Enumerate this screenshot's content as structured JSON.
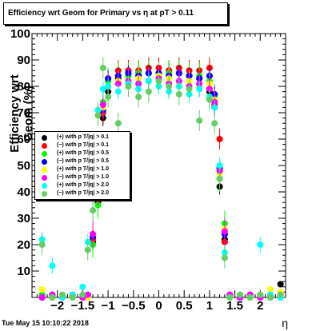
{
  "title": "Efficiency wrt Geom for Primary vs   η at pT > 0.11",
  "timestamp": "Tue May 15 10:10:22 2018",
  "chart_data": {
    "type": "scatter",
    "xlabel": "η",
    "ylabel": "Efficiency wrt Geom (%)",
    "xlim": [
      -2.5,
      2.5
    ],
    "ylim": [
      0,
      100
    ],
    "xticks": [
      -2,
      -1.5,
      -1,
      -0.5,
      0,
      0.5,
      1,
      1.5,
      2
    ],
    "xtick_labels": [
      "−2",
      "−1.5",
      "−1",
      "−0.5",
      "0",
      "0.5",
      "1",
      "1.5",
      "2"
    ],
    "yticks": [
      10,
      20,
      30,
      40,
      50,
      60,
      70,
      80,
      90,
      100
    ],
    "ytick_labels": [
      "10",
      "20",
      "30",
      "40",
      "50",
      "60",
      "70",
      "80",
      "90",
      "100"
    ],
    "legend_position": "left",
    "series": [
      {
        "name": "(+) with p T/|q| > 0.1",
        "color": "#000000",
        "x": [
          -2.3,
          -2.1,
          -1.9,
          -1.7,
          -1.5,
          -1.4,
          -1.3,
          -1.2,
          -1.1,
          -1.0,
          -0.8,
          -0.6,
          -0.4,
          -0.2,
          0.0,
          0.2,
          0.4,
          0.6,
          0.8,
          1.0,
          1.1,
          1.2,
          1.3,
          1.4,
          1.6,
          1.8,
          2.0,
          2.2,
          2.4
        ],
        "y": [
          1,
          0,
          1,
          0,
          1,
          0,
          21,
          36,
          68,
          78,
          83,
          84,
          85,
          85,
          85,
          86,
          85,
          84,
          83,
          78,
          72,
          42,
          22,
          1,
          0,
          1,
          0,
          1,
          5
        ]
      },
      {
        "name": "(−) with p T/|q| > 0.1",
        "color": "#ff0000",
        "x": [
          -2.3,
          -2.1,
          -1.9,
          -1.7,
          -1.5,
          -1.4,
          -1.3,
          -1.2,
          -1.1,
          -1.0,
          -0.8,
          -0.6,
          -0.4,
          -0.2,
          0.0,
          0.2,
          0.4,
          0.6,
          0.8,
          1.0,
          1.1,
          1.2,
          1.3,
          1.4,
          1.6,
          1.8,
          2.0,
          2.2,
          2.4
        ],
        "y": [
          0,
          1,
          0,
          1,
          0,
          1,
          22,
          37,
          70,
          82,
          86,
          86,
          86,
          87,
          87,
          86,
          87,
          86,
          86,
          87,
          73,
          60,
          21,
          0,
          1,
          0,
          1,
          0,
          2
        ]
      },
      {
        "name": "(+) with p T/|q| > 0.5",
        "color": "#00ff00",
        "x": [
          -2.3,
          -2.1,
          -1.9,
          -1.7,
          -1.5,
          -1.4,
          -1.3,
          -1.2,
          -1.1,
          -1.0,
          -0.8,
          -0.6,
          -0.4,
          -0.2,
          0.0,
          0.2,
          0.4,
          0.6,
          0.8,
          1.0,
          1.1,
          1.2,
          1.3,
          1.4,
          1.6,
          1.8,
          2.0,
          2.2,
          2.4
        ],
        "y": [
          1,
          0,
          1,
          0,
          1,
          0,
          20,
          35,
          74,
          82,
          84,
          84,
          85,
          85,
          84,
          85,
          85,
          84,
          84,
          82,
          76,
          45,
          28,
          0,
          1,
          0,
          1,
          0,
          1
        ]
      },
      {
        "name": "(−) with p T/|q| > 0.5",
        "color": "#0000ff",
        "x": [
          -2.3,
          -2.1,
          -1.9,
          -1.7,
          -1.5,
          -1.4,
          -1.3,
          -1.2,
          -1.1,
          -1.0,
          -0.8,
          -0.6,
          -0.4,
          -0.2,
          0.0,
          0.2,
          0.4,
          0.6,
          0.8,
          1.0,
          1.1,
          1.2,
          1.3,
          1.4,
          1.6,
          1.8,
          2.0,
          2.2,
          2.4
        ],
        "y": [
          0,
          1,
          0,
          1,
          0,
          1,
          23,
          38,
          71,
          83,
          84,
          85,
          84,
          85,
          85,
          84,
          85,
          84,
          83,
          84,
          77,
          49,
          24,
          1,
          0,
          1,
          0,
          1,
          0
        ]
      },
      {
        "name": "(+) with p T/|q| > 1.0",
        "color": "#ffff00",
        "x": [
          -2.3,
          -2.1,
          -1.9,
          -1.7,
          -1.5,
          -1.4,
          -1.3,
          -1.2,
          -1.1,
          -1.0,
          -0.8,
          -0.6,
          -0.4,
          -0.2,
          0.0,
          0.2,
          0.4,
          0.6,
          0.8,
          1.0,
          1.1,
          1.2,
          1.3,
          1.4,
          1.6,
          1.8,
          2.0,
          2.2,
          2.4
        ],
        "y": [
          3,
          0,
          1,
          0,
          1,
          0,
          24,
          39,
          72,
          80,
          82,
          81,
          83,
          82,
          84,
          83,
          81,
          82,
          80,
          81,
          75,
          47,
          26,
          0,
          1,
          0,
          1,
          3,
          2
        ]
      },
      {
        "name": "(−) with p T/|q| > 1.0",
        "color": "#ff00ff",
        "x": [
          -2.3,
          -2.1,
          -1.9,
          -1.7,
          -1.5,
          -1.4,
          -1.3,
          -1.2,
          -1.1,
          -1.0,
          -0.8,
          -0.6,
          -0.4,
          -0.2,
          0.0,
          0.2,
          0.4,
          0.6,
          0.8,
          1.0,
          1.1,
          1.2,
          1.3,
          1.4,
          1.6,
          1.8,
          2.0,
          2.2,
          2.4
        ],
        "y": [
          0,
          1,
          0,
          1,
          0,
          1,
          24,
          40,
          73,
          80,
          81,
          82,
          81,
          82,
          83,
          81,
          82,
          80,
          81,
          79,
          74,
          48,
          25,
          1,
          0,
          1,
          0,
          1,
          1
        ]
      },
      {
        "name": "(+) with p T/|q| > 2.0",
        "color": "#00ffff",
        "x": [
          -2.3,
          -2.1,
          -1.9,
          -1.7,
          -1.5,
          -1.4,
          -1.3,
          -1.2,
          -1.1,
          -1.0,
          -0.8,
          -0.6,
          -0.4,
          -0.2,
          0.0,
          0.2,
          0.4,
          0.6,
          0.8,
          1.0,
          1.1,
          1.2,
          1.3,
          1.4,
          1.6,
          1.8,
          2.0,
          2.2,
          2.4
        ],
        "y": [
          22,
          12,
          0,
          1,
          4,
          21,
          38,
          71,
          79,
          80,
          78,
          81,
          79,
          82,
          80,
          78,
          80,
          77,
          79,
          76,
          72,
          50,
          17,
          0,
          1,
          0,
          20,
          1,
          0
        ]
      },
      {
        "name": "(−) with p T/|q| > 2.0",
        "color": "#66cc66",
        "x": [
          -2.3,
          -2.1,
          -1.9,
          -1.7,
          -1.5,
          -1.4,
          -1.3,
          -1.2,
          -1.1,
          -1.0,
          -0.8,
          -0.6,
          -0.4,
          -0.2,
          0.0,
          0.2,
          0.4,
          0.6,
          0.8,
          1.0,
          1.1,
          1.2,
          1.3,
          1.4,
          1.6,
          1.8,
          2.0,
          2.2,
          2.4
        ],
        "y": [
          20,
          0,
          1,
          0,
          1,
          18,
          33,
          69,
          87,
          76,
          66,
          80,
          76,
          78,
          82,
          80,
          77,
          79,
          67,
          75,
          66,
          45,
          15,
          0,
          1,
          0,
          1,
          0,
          1
        ]
      }
    ]
  }
}
